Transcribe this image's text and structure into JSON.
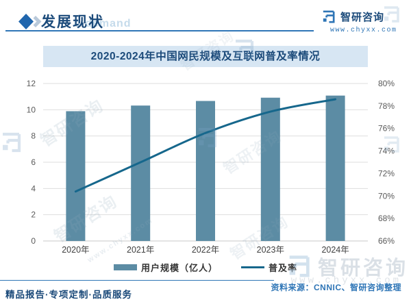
{
  "header": {
    "section_title": "发展现状",
    "watermark_fragment": "d demand",
    "brand_name": "智研咨询",
    "brand_url": "www.chyxx.com"
  },
  "chart_data": {
    "type": "bar",
    "title": "2020-2024年中国网民规模及互联网普及率情况",
    "categories": [
      "2020年",
      "2021年",
      "2022年",
      "2023年",
      "2024年"
    ],
    "series": [
      {
        "name": "用户规模（亿人）",
        "type": "bar",
        "axis": "left",
        "color": "#5c8ca4",
        "values": [
          9.89,
          10.32,
          10.67,
          10.92,
          11.08
        ]
      },
      {
        "name": "普及率",
        "type": "line",
        "axis": "right",
        "color": "#16678c",
        "values": [
          70.4,
          73.0,
          75.6,
          77.5,
          78.6
        ]
      }
    ],
    "left_axis": {
      "min": 0,
      "max": 12,
      "step": 2,
      "tick_labels": [
        "0",
        "2",
        "4",
        "6",
        "8",
        "10",
        "12"
      ]
    },
    "right_axis": {
      "min": 66,
      "max": 80,
      "step": 2,
      "tick_labels": [
        "66%",
        "68%",
        "70%",
        "72%",
        "74%",
        "76%",
        "78%",
        "80%"
      ]
    },
    "grid": true,
    "legend_position": "bottom",
    "colors": {
      "grid": "#dedede",
      "axis_text": "#595959",
      "category_text": "#3f3f3f",
      "title_text": "#1b4a7a",
      "title_band_bg": "#d7e6f3"
    }
  },
  "footer": {
    "source_text": "资料来源：CNNIC、智研咨询整理",
    "tagline": "精品报告·专项定制·品质服务"
  },
  "watermarks": {
    "brand_text": "智研咨询",
    "brand_url": "www.chyxx.com"
  }
}
